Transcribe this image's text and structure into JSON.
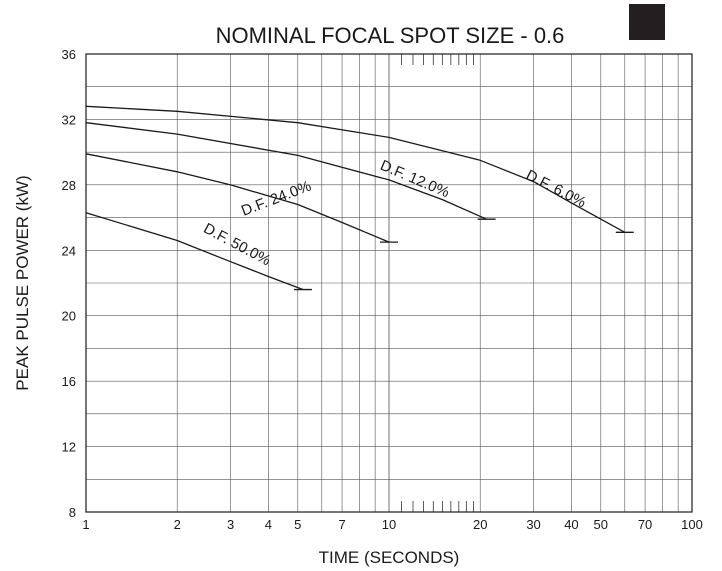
{
  "chart_data": {
    "type": "line",
    "title": "NOMINAL FOCAL SPOT SIZE - 0.6",
    "xlabel": "TIME (SECONDS)",
    "ylabel": "PEAK PULSE POWER (kW)",
    "xscale": "log",
    "xlim": [
      1,
      100
    ],
    "ylim": [
      8,
      36
    ],
    "grid": true,
    "x_ticks": [
      1,
      2,
      3,
      4,
      5,
      7,
      10,
      20,
      30,
      40,
      50,
      70,
      100
    ],
    "y_ticks": [
      8,
      12,
      16,
      20,
      24,
      28,
      32,
      36
    ],
    "title_box_color": "#231f20",
    "series": [
      {
        "name": "D.F. 6.0%",
        "x": [
          1,
          2,
          5,
          10,
          20,
          30,
          40,
          60
        ],
        "y": [
          32.8,
          32.5,
          31.8,
          30.9,
          29.5,
          28.2,
          26.9,
          25.1
        ],
        "end_x": 60,
        "end_y": 25.1,
        "label_x": 35,
        "label_y": 27.5,
        "label_angle": 27
      },
      {
        "name": "D.F. 12.0%",
        "x": [
          1,
          2,
          5,
          10,
          15,
          21
        ],
        "y": [
          31.8,
          31.1,
          29.8,
          28.3,
          27.1,
          25.9
        ],
        "end_x": 21,
        "end_y": 25.9,
        "label_x": 12,
        "label_y": 28.1,
        "label_angle": 23
      },
      {
        "name": "D.F. 24.0%",
        "x": [
          1,
          2,
          3,
          5,
          7,
          10
        ],
        "y": [
          29.9,
          28.8,
          28.0,
          26.8,
          25.7,
          24.5
        ],
        "end_x": 10,
        "end_y": 24.5,
        "label_x": 4.3,
        "label_y": 26.9,
        "label_angle": -21
      },
      {
        "name": "D.F. 50.0%",
        "x": [
          1,
          2,
          3,
          4,
          5.2
        ],
        "y": [
          26.3,
          24.6,
          23.3,
          22.4,
          21.6
        ],
        "end_x": 5.2,
        "end_y": 21.6,
        "label_x": 3.1,
        "label_y": 24.1,
        "label_angle": 28
      }
    ]
  }
}
